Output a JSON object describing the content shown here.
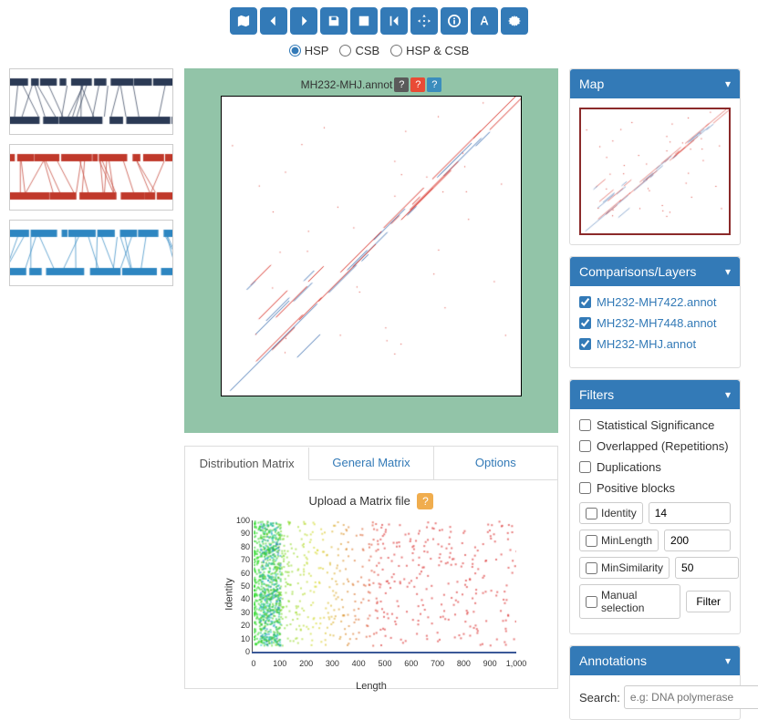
{
  "toolbar": {
    "icons": [
      "map",
      "prev",
      "next",
      "save",
      "grid",
      "first",
      "move",
      "info",
      "font",
      "gear"
    ]
  },
  "display_modes": {
    "options": [
      "HSP",
      "CSB",
      "HSP & CSB"
    ],
    "selected": 0
  },
  "left_tracks": [
    {
      "color": "#2b3a55"
    },
    {
      "color": "#c0392b"
    },
    {
      "color": "#2e86c1"
    }
  ],
  "dotplot": {
    "title": "MH232-MHJ.annot",
    "bg": "#92c4a8",
    "series": [
      {
        "color": "#d73027"
      },
      {
        "color": "#4575b4"
      }
    ]
  },
  "tabs": {
    "items": [
      "Distribution Matrix",
      "General Matrix",
      "Options"
    ],
    "active": 0
  },
  "upload": {
    "label": "Upload a Matrix file"
  },
  "scatter": {
    "ylabel": "Identity",
    "xlabel": "Length",
    "ylim": [
      0,
      100
    ],
    "ytick_step": 10,
    "xlim": [
      0,
      1000
    ],
    "xtick_step": 100,
    "axis_color": "#555",
    "baseline_color": "#2e5aac",
    "n_points": 900
  },
  "panels": {
    "map": {
      "title": "Map"
    },
    "layers": {
      "title": "Comparisons/Layers",
      "items": [
        {
          "label": "MH232-MH7422.annot",
          "checked": true
        },
        {
          "label": "MH232-MH7448.annot",
          "checked": true
        },
        {
          "label": "MH232-MHJ.annot",
          "checked": true
        }
      ]
    },
    "filters": {
      "title": "Filters",
      "checks": [
        {
          "label": "Statistical Significance",
          "checked": false
        },
        {
          "label": "Overlapped (Repetitions)",
          "checked": false
        },
        {
          "label": "Duplications",
          "checked": false
        },
        {
          "label": "Positive blocks",
          "checked": false
        }
      ],
      "numeric": [
        {
          "label": "Identity",
          "value": "14"
        },
        {
          "label": "MinLength",
          "value": "200"
        },
        {
          "label": "MinSimilarity",
          "value": "50"
        }
      ],
      "manual": {
        "label": "Manual selection"
      },
      "button": "Filter"
    },
    "annotations": {
      "title": "Annotations",
      "search_label": "Search:",
      "placeholder": "e.g: DNA polymerase"
    }
  }
}
